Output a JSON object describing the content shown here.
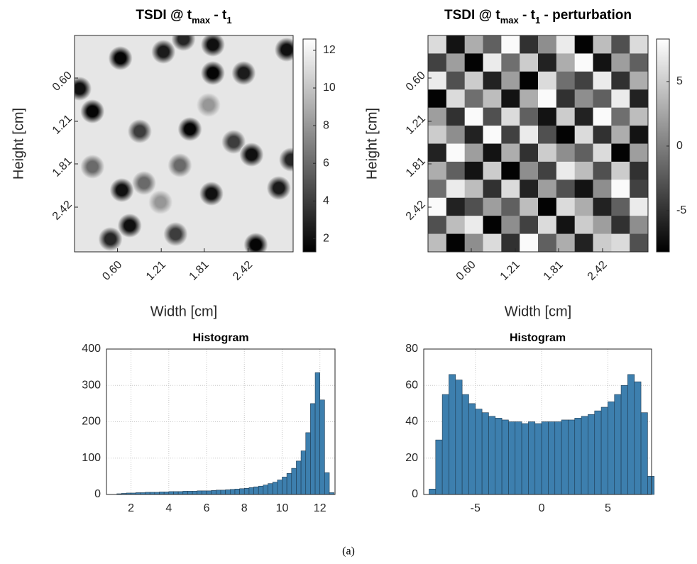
{
  "chart_data": [
    {
      "type": "heatmap",
      "title": [
        "TSDI @ t",
        "max",
        " - t",
        "1"
      ],
      "xlabel": "Width [cm]",
      "ylabel": "Height [cm]",
      "xlim": [
        0,
        3.05
      ],
      "ylim": [
        0,
        3.05
      ],
      "xticks": [
        {
          "value": 0.6,
          "label": "0.60"
        },
        1.21,
        1.81,
        2.42
      ],
      "yticks": [
        {
          "value": 0.6,
          "label": "0.60"
        },
        1.21,
        1.81,
        2.42
      ],
      "clim": [
        1.3,
        12.6
      ],
      "cticks": [
        2,
        4,
        6,
        8,
        10,
        12
      ],
      "background": 11.5,
      "x": [
        0.64,
        1.24,
        1.52,
        1.93,
        2.96,
        0.07,
        1.93,
        2.36,
        0.25,
        1.87,
        0.91,
        1.61,
        2.22,
        2.47,
        3.02,
        0.25,
        1.47,
        0.97,
        0.66,
        1.91,
        2.85,
        1.2,
        0.77,
        1.41,
        0.5,
        2.53
      ],
      "y": [
        0.32,
        0.23,
        0.05,
        0.13,
        0.2,
        0.75,
        0.53,
        0.53,
        1.07,
        0.98,
        1.35,
        1.32,
        1.5,
        1.68,
        1.75,
        1.85,
        1.83,
        2.08,
        2.18,
        2.23,
        2.15,
        2.35,
        2.68,
        2.8,
        2.87,
        2.95
      ],
      "values": [
        1.5,
        2.5,
        3,
        2,
        2,
        2,
        1.5,
        2.5,
        1.5,
        8,
        4,
        1.5,
        4,
        2,
        3,
        6,
        6,
        6,
        2,
        2,
        2.5,
        8,
        2,
        4,
        3,
        1.5
      ]
    },
    {
      "type": "heatmap",
      "title": [
        "TSDI @ t",
        "max",
        " - t",
        "1",
        " - perturbation"
      ],
      "xlabel": "Width [cm]",
      "ylabel": "Height [cm]",
      "xlim": [
        0,
        3.05
      ],
      "ylim": [
        0,
        3.05
      ],
      "xticks": [
        {
          "value": 0.6,
          "label": "0.60"
        },
        1.21,
        1.81,
        2.42
      ],
      "yticks": [
        {
          "value": 0.6,
          "label": "0.60"
        },
        1.21,
        1.81,
        2.42
      ],
      "clim": [
        -8.2,
        8.3
      ],
      "cticks": [
        -5,
        0,
        5
      ],
      "z": [
        [
          6,
          -7,
          3,
          -2,
          8,
          -5,
          1,
          7,
          -8,
          4,
          -3,
          6
        ],
        [
          -4,
          2,
          -8,
          7,
          -1,
          5,
          -6,
          3,
          8,
          -7,
          2,
          -2
        ],
        [
          7,
          -3,
          5,
          -6,
          2,
          -8,
          6,
          -1,
          -4,
          7,
          -5,
          3
        ],
        [
          -8,
          6,
          -1,
          4,
          -7,
          3,
          8,
          -5,
          1,
          -2,
          7,
          -6
        ],
        [
          2,
          -5,
          8,
          -3,
          6,
          -2,
          -7,
          5,
          -6,
          8,
          -1,
          4
        ],
        [
          5,
          1,
          -6,
          8,
          -4,
          7,
          -3,
          -8,
          6,
          -5,
          3,
          -7
        ],
        [
          -6,
          8,
          2,
          -7,
          3,
          -5,
          5,
          1,
          -2,
          6,
          -8,
          2
        ],
        [
          3,
          -2,
          -7,
          5,
          -8,
          1,
          -4,
          7,
          4,
          -3,
          5,
          -5
        ],
        [
          -1,
          7,
          4,
          -5,
          6,
          -6,
          2,
          -3,
          -7,
          1,
          8,
          -4
        ],
        [
          8,
          -6,
          -3,
          2,
          -2,
          4,
          -8,
          6,
          3,
          -6,
          -2,
          7
        ],
        [
          -3,
          4,
          7,
          -8,
          1,
          -4,
          6,
          -7,
          5,
          2,
          -5,
          1
        ],
        [
          4,
          -8,
          1,
          6,
          -5,
          8,
          -2,
          3,
          -6,
          5,
          6,
          -3
        ]
      ]
    },
    {
      "type": "histogram",
      "title": "Histogram",
      "xlim": [
        0.7,
        12.8
      ],
      "ylim": [
        0,
        400
      ],
      "xticks": [
        2,
        4,
        6,
        8,
        10,
        12
      ],
      "yticks": [
        0,
        100,
        200,
        300,
        400
      ],
      "grid": true,
      "color": "#3d7fae",
      "bins": [
        1.25,
        1.5,
        1.75,
        2,
        2.25,
        2.5,
        2.75,
        3,
        3.25,
        3.5,
        3.75,
        4,
        4.25,
        4.5,
        4.75,
        5,
        5.25,
        5.5,
        5.75,
        6,
        6.25,
        6.5,
        6.75,
        7,
        7.25,
        7.5,
        7.75,
        8,
        8.25,
        8.5,
        8.75,
        9,
        9.25,
        9.5,
        9.75,
        10,
        10.25,
        10.5,
        10.75,
        11,
        11.25,
        11.5,
        11.75,
        12,
        12.25,
        12.5,
        12.75
      ],
      "values": [
        2,
        3,
        4,
        4,
        5,
        5,
        6,
        6,
        6,
        7,
        7,
        8,
        8,
        8,
        9,
        9,
        9,
        10,
        10,
        10,
        11,
        12,
        12,
        13,
        14,
        15,
        16,
        17,
        19,
        21,
        23,
        26,
        30,
        34,
        40,
        48,
        58,
        72,
        92,
        120,
        170,
        250,
        335,
        260,
        60,
        5
      ]
    },
    {
      "type": "histogram",
      "title": "Histogram",
      "xlim": [
        -8.9,
        8.3
      ],
      "ylim": [
        0,
        80
      ],
      "xticks": [
        -5,
        0,
        5
      ],
      "yticks": [
        0,
        20,
        40,
        60,
        80
      ],
      "grid": true,
      "color": "#3d7fae",
      "bins": [
        -8.5,
        -8,
        -7.5,
        -7,
        -6.5,
        -6,
        -5.5,
        -5,
        -4.5,
        -4,
        -3.5,
        -3,
        -2.5,
        -2,
        -1.5,
        -1,
        -0.5,
        0,
        0.5,
        1,
        1.5,
        2,
        2.5,
        3,
        3.5,
        4,
        4.5,
        5,
        5.5,
        6,
        6.5,
        7,
        7.5,
        8,
        8.5
      ],
      "values": [
        3,
        30,
        55,
        66,
        63,
        55,
        50,
        47,
        45,
        43,
        42,
        41,
        40,
        40,
        39,
        40,
        39,
        40,
        40,
        40,
        41,
        41,
        42,
        43,
        44,
        46,
        48,
        51,
        55,
        60,
        66,
        62,
        45,
        10
      ]
    }
  ],
  "caption": "(a)"
}
